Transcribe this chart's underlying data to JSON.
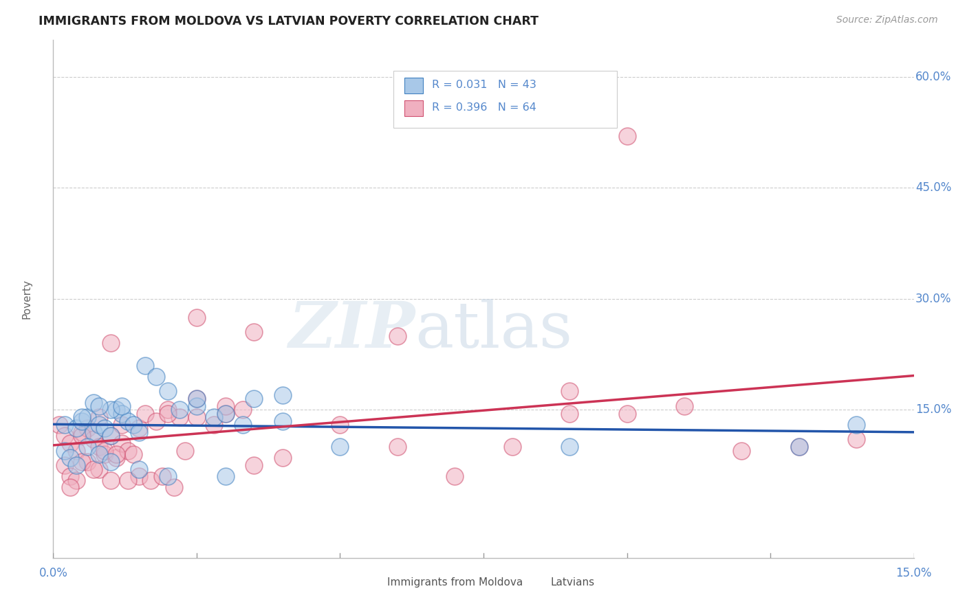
{
  "title": "IMMIGRANTS FROM MOLDOVA VS LATVIAN POVERTY CORRELATION CHART",
  "source": "Source: ZipAtlas.com",
  "ylabel": "Poverty",
  "ytick_labels": [
    "60.0%",
    "45.0%",
    "30.0%",
    "15.0%"
  ],
  "ytick_values": [
    0.6,
    0.45,
    0.3,
    0.15
  ],
  "xmin": 0.0,
  "xmax": 0.15,
  "ymin": -0.05,
  "ymax": 0.65,
  "legend_label1": "Immigrants from Moldova",
  "legend_label2": "Latvians",
  "R1": 0.031,
  "N1": 43,
  "R2": 0.396,
  "N2": 64,
  "color_blue": "#a8c8e8",
  "color_pink": "#f0b0c0",
  "edge_blue": "#4080c0",
  "edge_pink": "#d05070",
  "line_blue": "#2255aa",
  "line_pink": "#cc3355",
  "watermark_zip": "ZIP",
  "watermark_atlas": "atlas",
  "background_color": "#ffffff",
  "grid_color": "#cccccc",
  "right_label_color": "#5588cc",
  "title_color": "#222222",
  "source_color": "#999999",
  "ylabel_color": "#666666",
  "bottom_label_color": "#555555",
  "blue_x": [
    0.002,
    0.004,
    0.005,
    0.006,
    0.007,
    0.008,
    0.009,
    0.01,
    0.011,
    0.012,
    0.013,
    0.014,
    0.015,
    0.016,
    0.018,
    0.02,
    0.022,
    0.025,
    0.028,
    0.03,
    0.033,
    0.002,
    0.003,
    0.004,
    0.006,
    0.008,
    0.01,
    0.015,
    0.02,
    0.03,
    0.04,
    0.05,
    0.025,
    0.035,
    0.04,
    0.01,
    0.007,
    0.005,
    0.008,
    0.012,
    0.09,
    0.13,
    0.14
  ],
  "blue_y": [
    0.13,
    0.125,
    0.135,
    0.14,
    0.12,
    0.13,
    0.125,
    0.115,
    0.15,
    0.145,
    0.135,
    0.13,
    0.12,
    0.21,
    0.195,
    0.175,
    0.15,
    0.155,
    0.14,
    0.145,
    0.13,
    0.095,
    0.085,
    0.075,
    0.1,
    0.09,
    0.08,
    0.07,
    0.06,
    0.06,
    0.135,
    0.1,
    0.165,
    0.165,
    0.17,
    0.15,
    0.16,
    0.14,
    0.155,
    0.155,
    0.1,
    0.1,
    0.13
  ],
  "pink_x": [
    0.001,
    0.002,
    0.003,
    0.004,
    0.005,
    0.006,
    0.007,
    0.008,
    0.009,
    0.01,
    0.011,
    0.012,
    0.013,
    0.014,
    0.015,
    0.016,
    0.018,
    0.02,
    0.022,
    0.025,
    0.028,
    0.03,
    0.002,
    0.003,
    0.004,
    0.006,
    0.008,
    0.01,
    0.015,
    0.02,
    0.025,
    0.035,
    0.04,
    0.05,
    0.06,
    0.07,
    0.08,
    0.09,
    0.1,
    0.11,
    0.12,
    0.13,
    0.14,
    0.003,
    0.005,
    0.007,
    0.009,
    0.011,
    0.013,
    0.017,
    0.019,
    0.021,
    0.023,
    0.03,
    0.033,
    0.025,
    0.01,
    0.012,
    0.008,
    0.005,
    0.035,
    0.06,
    0.09,
    0.1
  ],
  "pink_y": [
    0.13,
    0.115,
    0.105,
    0.095,
    0.12,
    0.125,
    0.11,
    0.1,
    0.09,
    0.115,
    0.085,
    0.105,
    0.095,
    0.09,
    0.125,
    0.145,
    0.135,
    0.15,
    0.14,
    0.275,
    0.13,
    0.145,
    0.075,
    0.06,
    0.055,
    0.08,
    0.07,
    0.055,
    0.06,
    0.145,
    0.14,
    0.075,
    0.085,
    0.13,
    0.1,
    0.06,
    0.1,
    0.145,
    0.145,
    0.155,
    0.095,
    0.1,
    0.11,
    0.045,
    0.08,
    0.07,
    0.095,
    0.09,
    0.055,
    0.055,
    0.06,
    0.045,
    0.095,
    0.155,
    0.15,
    0.165,
    0.24,
    0.13,
    0.14,
    0.115,
    0.255,
    0.25,
    0.175,
    0.52
  ]
}
